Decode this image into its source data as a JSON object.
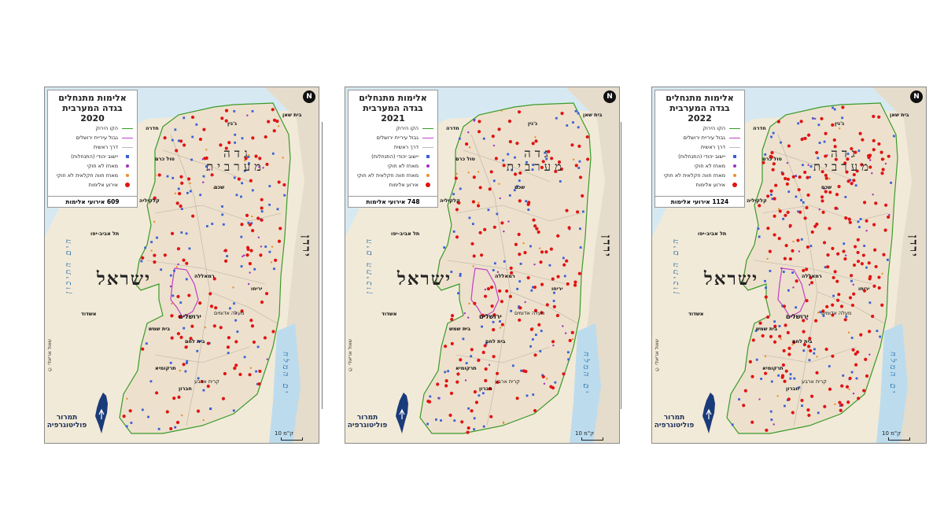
{
  "legend": {
    "title_line1": "אלימות מתנחלים",
    "title_line2": "בגדה המערבית",
    "items": [
      {
        "label": "הקו הירוק",
        "symbol": "line",
        "color": "#3a9a2a"
      },
      {
        "label": "גבול עיריית ירושלים",
        "symbol": "line",
        "color": "#c23fc4"
      },
      {
        "label": "דרך ראשית",
        "symbol": "line",
        "color": "#bbbbbb"
      },
      {
        "label": "יישוב יהודי (התנחלות)",
        "symbol": "sq",
        "color": "#3a5fd6"
      },
      {
        "label": "מאחז לא חוקי",
        "symbol": "dot",
        "color": "#a030c0"
      },
      {
        "label": "מאחז חווה חקלאית לא חוקי",
        "symbol": "dot",
        "color": "#e8902a"
      },
      {
        "label": "אירוע אלימות",
        "symbol": "dotb",
        "color": "#e01414"
      }
    ]
  },
  "panels": [
    {
      "year": "2020",
      "count_label": "609 אירועי אלימות",
      "incidents": 609
    },
    {
      "year": "2021",
      "count_label": "748 אירועי אלימות",
      "incidents": 748
    },
    {
      "year": "2022",
      "count_label": "1124 אירועי אלימות",
      "incidents": 1124
    }
  ],
  "places": {
    "beit_shean": "בית שאן",
    "jenin": "ג'נין",
    "hadera": "חדרה",
    "tulkarm": "טול כרם",
    "qalqilya": "קלקיליה",
    "nablus": "שכם",
    "tel_aviv": "תל אביב-יפו",
    "ramallah": "רמאללה",
    "jericho": "יריחו",
    "jerusalem": "ירושלים",
    "beit_shemesh": "בית שמש",
    "bethlehem": "בית לחם",
    "hebron": "חברון",
    "tarqumiya": "תרקומיא",
    "ashdod": "אשדוד",
    "kiryat_arba": "קרית ארבע",
    "maale_adumim": "מעלה אדומים"
  },
  "regions": {
    "west_bank": "גדה מערבית",
    "israel": "ישראל",
    "jordan": "ירדן",
    "mediterranean": "הים התיכון",
    "dead_sea": "ים המלח"
  },
  "brand": {
    "line1": "תמרור",
    "line2": "פוליטוגרפיה"
  },
  "copyright": "© שאול אריאלי",
  "scale": "10 ק\"מ",
  "north": "N",
  "colors": {
    "land": "#ede1cd",
    "israel_land": "#f2ead8",
    "sea": "#d6e9f2",
    "violence": "#e01414",
    "settlement": "#3a5fd6"
  }
}
